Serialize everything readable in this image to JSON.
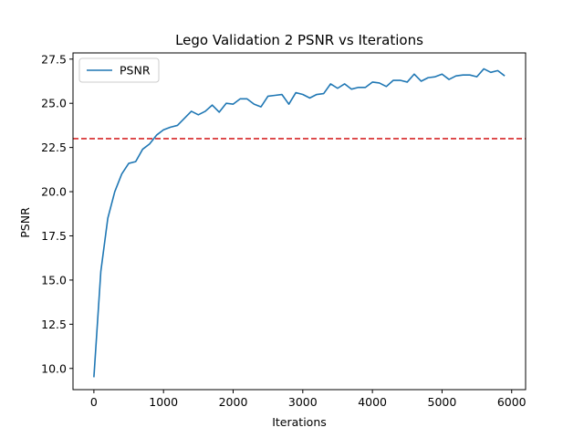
{
  "chart_data": {
    "type": "line",
    "title": "Lego Validation 2 PSNR vs Iterations",
    "xlabel": "Iterations",
    "ylabel": "PSNR",
    "xlim": [
      -300,
      6200
    ],
    "ylim": [
      8.8,
      27.85
    ],
    "xticks": [
      0,
      1000,
      2000,
      3000,
      4000,
      5000,
      6000
    ],
    "xtick_labels": [
      "0",
      "1000",
      "2000",
      "3000",
      "4000",
      "5000",
      "6000"
    ],
    "yticks": [
      10.0,
      12.5,
      15.0,
      17.5,
      20.0,
      22.5,
      25.0,
      27.5
    ],
    "ytick_labels": [
      "10.0",
      "12.5",
      "15.0",
      "17.5",
      "20.0",
      "22.5",
      "25.0",
      "27.5"
    ],
    "grid": false,
    "legend_position": "top-left",
    "reference_line": {
      "y": 23.0,
      "color": "#d62728",
      "style": "dashed"
    },
    "series": [
      {
        "name": "PSNR",
        "color": "#1f77b4",
        "x": [
          0,
          100,
          200,
          300,
          400,
          500,
          600,
          700,
          800,
          900,
          1000,
          1100,
          1200,
          1300,
          1400,
          1500,
          1600,
          1700,
          1800,
          1900,
          2000,
          2100,
          2200,
          2300,
          2400,
          2500,
          2600,
          2700,
          2800,
          2900,
          3000,
          3100,
          3200,
          3300,
          3400,
          3500,
          3600,
          3700,
          3800,
          3900,
          4000,
          4100,
          4200,
          4300,
          4400,
          4500,
          4600,
          4700,
          4800,
          4900,
          5000,
          5100,
          5200,
          5300,
          5400,
          5500,
          5600,
          5700,
          5800,
          5900
        ],
        "y": [
          9.5,
          15.5,
          18.5,
          20.0,
          21.0,
          21.6,
          21.7,
          22.4,
          22.7,
          23.2,
          23.5,
          23.65,
          23.75,
          24.15,
          24.55,
          24.35,
          24.55,
          24.9,
          24.5,
          25.0,
          24.95,
          25.25,
          25.25,
          24.95,
          24.8,
          25.4,
          25.45,
          25.5,
          24.95,
          25.6,
          25.5,
          25.3,
          25.5,
          25.55,
          26.1,
          25.85,
          26.1,
          25.8,
          25.9,
          25.9,
          26.2,
          26.15,
          25.95,
          26.3,
          26.3,
          26.2,
          26.65,
          26.25,
          26.45,
          26.5,
          26.65,
          26.35,
          26.55,
          26.6,
          26.6,
          26.5,
          26.95,
          26.75,
          26.85,
          26.55
        ]
      }
    ]
  }
}
